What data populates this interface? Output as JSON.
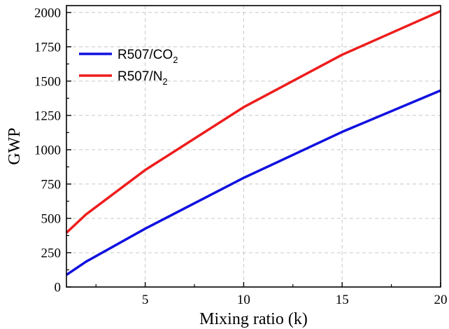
{
  "chart_data": {
    "type": "line",
    "xlabel": "Mixing ratio (k)",
    "ylabel": "GWP",
    "xlim": [
      1,
      20
    ],
    "ylim": [
      0,
      2050
    ],
    "x_ticks": [
      5,
      10,
      15,
      20
    ],
    "y_ticks": [
      0,
      250,
      500,
      750,
      1000,
      1250,
      1500,
      1750,
      2000
    ],
    "grid": true,
    "legend_position": "top-left",
    "series": [
      {
        "name_main": "R507/CO",
        "name_sub": "2",
        "color": "#1010e0",
        "x": [
          1,
          2,
          5,
          10,
          15,
          20
        ],
        "y": [
          88,
          185,
          425,
          795,
          1130,
          1432
        ]
      },
      {
        "name_main": "R507/N",
        "name_sub": "2",
        "color": "#ee1c1c",
        "x": [
          1,
          2,
          5,
          10,
          15,
          20
        ],
        "y": [
          395,
          530,
          852,
          1310,
          1692,
          2010
        ]
      }
    ]
  }
}
